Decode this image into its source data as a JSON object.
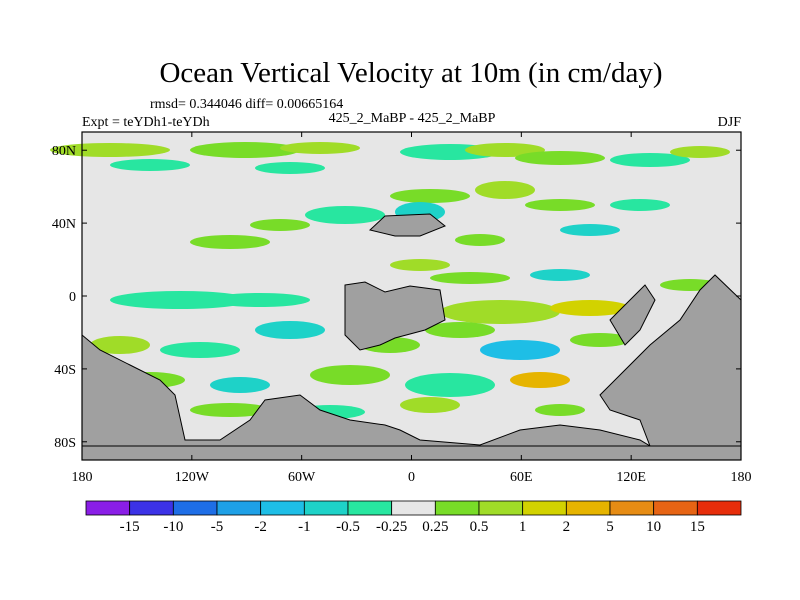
{
  "chart_data": {
    "type": "heatmap",
    "title": "Ocean Vertical Velocity at 10m (in cm/day)",
    "stats_line": "rmsd= 0.344046 diff= 0.00665164",
    "left_subtitle": "Expt = teYDh1-teYDh",
    "center_subtitle": "425_2_MaBP - 425_2_MaBP",
    "right_subtitle": "DJF",
    "x_ticks": [
      "180",
      "120W",
      "60W",
      "0",
      "60E",
      "120E",
      "180"
    ],
    "x_values": [
      -180,
      -120,
      -60,
      0,
      60,
      120,
      180
    ],
    "xlim": [
      -180,
      180
    ],
    "y_ticks": [
      "80N",
      "40N",
      "0",
      "40S",
      "80S"
    ],
    "y_values": [
      80,
      40,
      0,
      -40,
      -80
    ],
    "ylim": [
      -90,
      90
    ],
    "colorbar": {
      "labels": [
        "-15",
        "-10",
        "-5",
        "-2",
        "-1",
        "-0.5",
        "-0.25",
        "0.25",
        "0.5",
        "1",
        "2",
        "5",
        "10",
        "15"
      ],
      "colors": [
        "#8a1ee6",
        "#3c32e6",
        "#1e6ee6",
        "#1ea0e6",
        "#1ebee6",
        "#1ed2c8",
        "#28e6a0",
        "#e6e6e6",
        "#78dc28",
        "#a0dc28",
        "#d2d200",
        "#e6b400",
        "#e68c14",
        "#e66414",
        "#e62d0a"
      ]
    },
    "land_color": "#a0a0a0",
    "neutral_color": "#e6e6e6"
  }
}
